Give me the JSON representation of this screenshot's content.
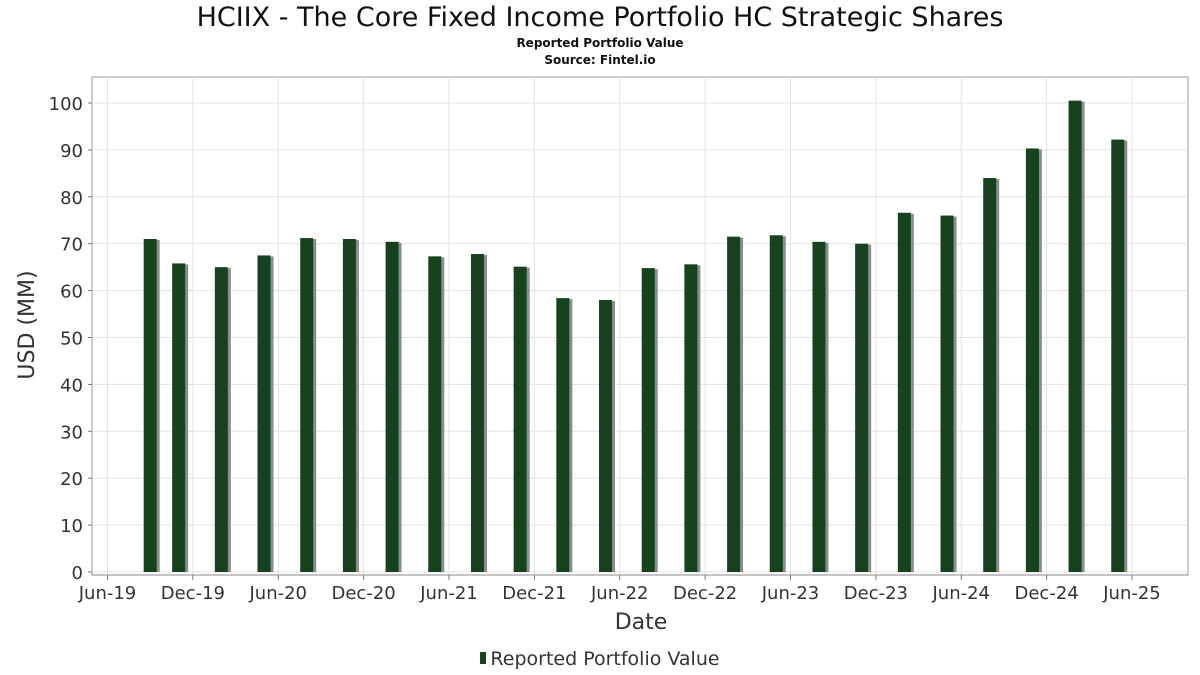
{
  "chart_data": {
    "type": "bar",
    "title": "HCIIX - The Core Fixed Income Portfolio HC Strategic Shares",
    "subtitle": "Reported Portfolio Value",
    "source": "Source: Fintel.io",
    "xlabel": "Date",
    "ylabel": "USD (MM)",
    "ylim": [
      0,
      105
    ],
    "yticks": [
      0,
      10,
      20,
      30,
      40,
      50,
      60,
      70,
      80,
      90,
      100
    ],
    "xticks": [
      "Jun-19",
      "Dec-19",
      "Jun-20",
      "Dec-20",
      "Jun-21",
      "Dec-21",
      "Jun-22",
      "Dec-22",
      "Jun-23",
      "Dec-23",
      "Jun-24",
      "Dec-24",
      "Jun-25"
    ],
    "grid": true,
    "legend_position": "bottom",
    "series": [
      {
        "name": "Reported Portfolio Value",
        "color": "#17421f",
        "categories": [
          "Sep-19",
          "Nov-19",
          "Feb-20",
          "May-20",
          "Aug-20",
          "Nov-20",
          "Feb-21",
          "May-21",
          "Aug-21",
          "Nov-21",
          "Feb-22",
          "May-22",
          "Aug-22",
          "Nov-22",
          "Feb-23",
          "May-23",
          "Aug-23",
          "Nov-23",
          "Feb-24",
          "May-24",
          "Aug-24",
          "Nov-24",
          "Feb-25",
          "May-25"
        ],
        "values": [
          71.0,
          65.8,
          65.0,
          67.5,
          71.2,
          71.0,
          70.4,
          67.3,
          67.8,
          65.1,
          58.4,
          58.0,
          64.8,
          65.6,
          71.5,
          71.8,
          70.4,
          70.0,
          76.6,
          76.0,
          84.0,
          90.3,
          100.5,
          92.2
        ]
      }
    ]
  }
}
